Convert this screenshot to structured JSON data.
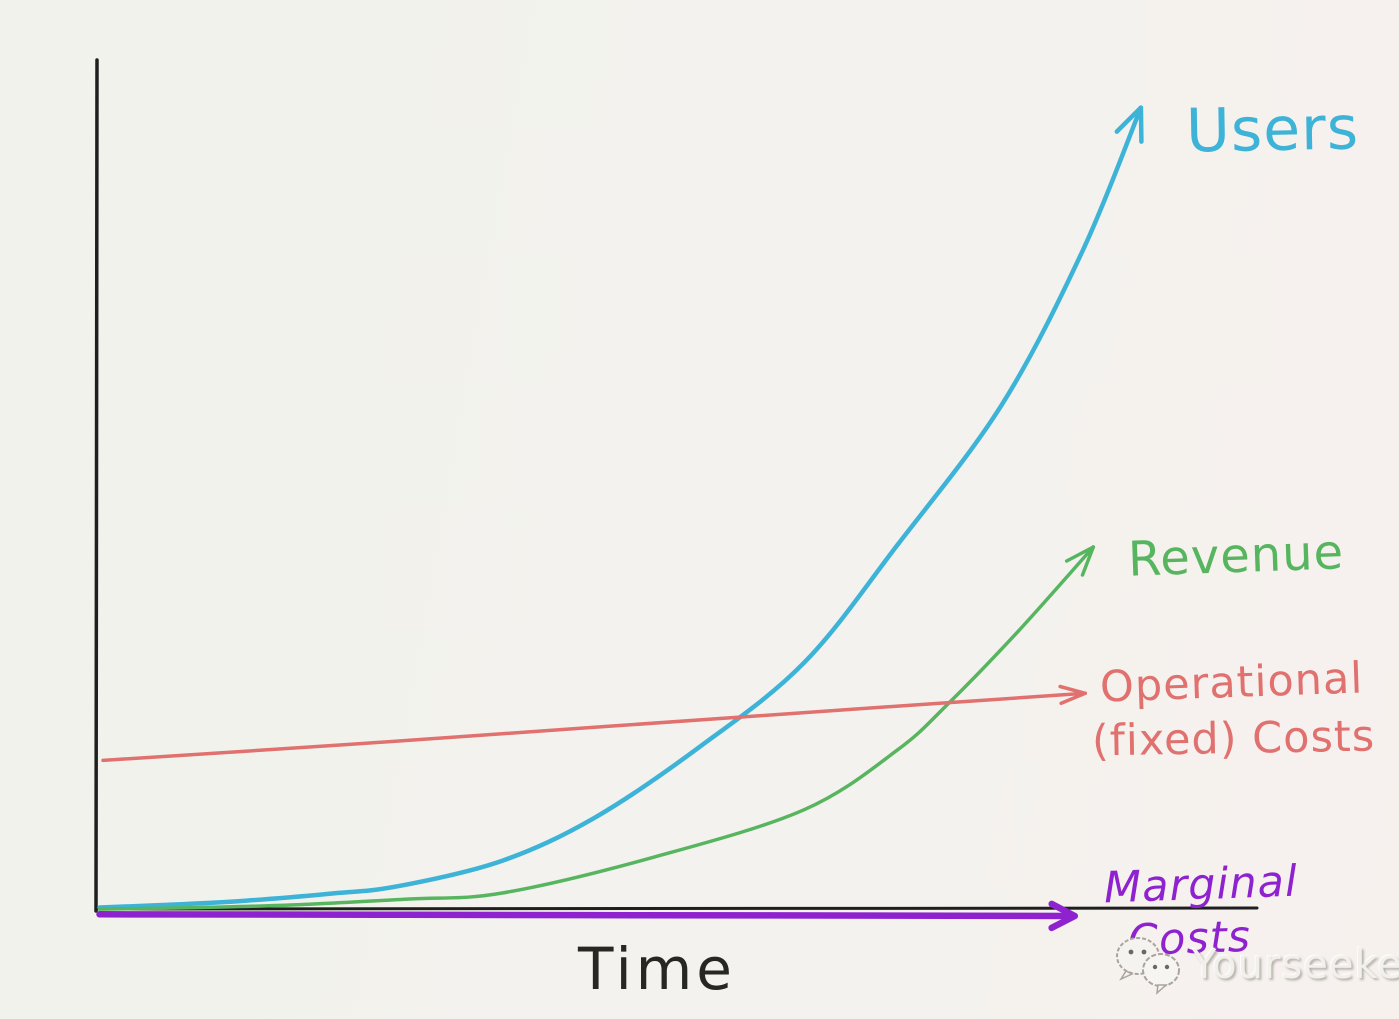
{
  "chart_data": {
    "type": "line",
    "title": "",
    "xlabel": "Time",
    "ylabel": "",
    "x_axis": {
      "label": "Time",
      "range": [
        0,
        100
      ],
      "ticks": "none"
    },
    "y_axis": {
      "label": "",
      "range": [
        0,
        100
      ],
      "ticks": "none"
    },
    "grid": false,
    "legend_position": "labels-at-line-ends",
    "background": "#f3f2ee",
    "axis_color": "#1f1f1f",
    "series": [
      {
        "name": "Users",
        "color": "#3eb3d8",
        "arrow": true,
        "points": [
          [
            0.3,
            0.3
          ],
          [
            6,
            0.6
          ],
          [
            13,
            1.1
          ],
          [
            20,
            1.9
          ],
          [
            26,
            2.8
          ],
          [
            35,
            5.8
          ],
          [
            43,
            10.9
          ],
          [
            52,
            19.2
          ],
          [
            61,
            29.1
          ],
          [
            69,
            42.9
          ],
          [
            78,
            59.4
          ],
          [
            85,
            77.6
          ],
          [
            90,
            94.4
          ]
        ]
      },
      {
        "name": "Revenue",
        "color": "#57b560",
        "arrow": true,
        "points": [
          [
            0.3,
            0.1
          ],
          [
            9,
            0.3
          ],
          [
            17,
            0.6
          ],
          [
            27,
            1.3
          ],
          [
            35,
            2.0
          ],
          [
            48,
            6.2
          ],
          [
            61,
            11.8
          ],
          [
            69,
            18.8
          ],
          [
            73.5,
            24.4
          ],
          [
            79.5,
            32.9
          ],
          [
            85.9,
            42.7
          ]
        ]
      },
      {
        "name": "Operational (fixed) Costs",
        "color": "#e0716f",
        "arrow": true,
        "points": [
          [
            0.6,
            17.6
          ],
          [
            22,
            19.5
          ],
          [
            44,
            21.6
          ],
          [
            65,
            23.6
          ],
          [
            85.2,
            25.5
          ]
        ]
      },
      {
        "name": "Marginal Costs",
        "color": "#8e22cf",
        "arrow": true,
        "points": [
          [
            0.3,
            -0.5
          ],
          [
            42,
            -0.6
          ],
          [
            84.3,
            -0.7
          ]
        ]
      }
    ]
  },
  "labels": {
    "users": "Users",
    "revenue": "Revenue",
    "operational_line1": "Operational",
    "operational_line2": "(fixed) Costs",
    "marginal_line1": "Marginal",
    "marginal_line2": "Costs",
    "time": "Time"
  },
  "watermark": {
    "text": "Yourseeker",
    "icon": "wechat-chat-bubbles-icon"
  }
}
